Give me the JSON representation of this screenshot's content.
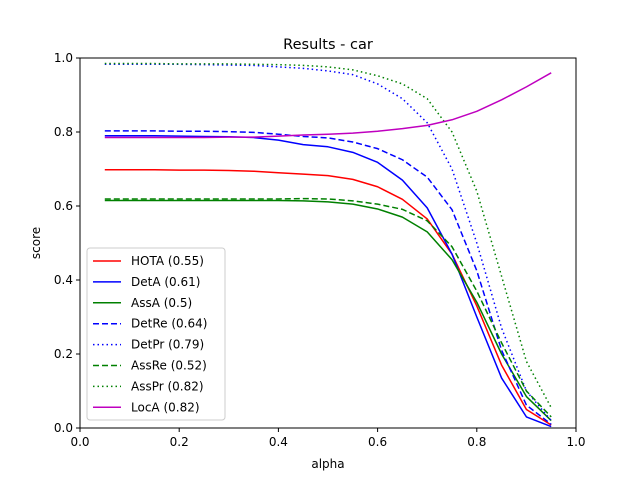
{
  "chart_data": {
    "type": "line",
    "title": "Results - car",
    "xlabel": "alpha",
    "ylabel": "score",
    "xlim": [
      0.0,
      1.0
    ],
    "ylim": [
      0.0,
      1.0
    ],
    "xticks": [
      "0.0",
      "0.2",
      "0.4",
      "0.6",
      "0.8",
      "1.0"
    ],
    "yticks": [
      "0.0",
      "0.2",
      "0.4",
      "0.6",
      "0.8",
      "1.0"
    ],
    "grid": false,
    "legend_position": "lower-left",
    "x": [
      0.05,
      0.1,
      0.15,
      0.2,
      0.25,
      0.3,
      0.35,
      0.4,
      0.45,
      0.5,
      0.55,
      0.6,
      0.65,
      0.7,
      0.75,
      0.8,
      0.85,
      0.9,
      0.95
    ],
    "series": [
      {
        "name": "HOTA (0.55)",
        "color": "#ff0000",
        "dash": "solid",
        "values": [
          0.698,
          0.698,
          0.698,
          0.697,
          0.697,
          0.696,
          0.694,
          0.69,
          0.686,
          0.682,
          0.672,
          0.652,
          0.618,
          0.565,
          0.47,
          0.33,
          0.17,
          0.05,
          0.008
        ]
      },
      {
        "name": "DetA (0.61)",
        "color": "#0000ff",
        "dash": "solid",
        "values": [
          0.79,
          0.79,
          0.79,
          0.789,
          0.788,
          0.787,
          0.785,
          0.778,
          0.766,
          0.76,
          0.745,
          0.718,
          0.67,
          0.595,
          0.47,
          0.3,
          0.135,
          0.03,
          0.004
        ]
      },
      {
        "name": "AssA (0.5)",
        "color": "#008000",
        "dash": "solid",
        "values": [
          0.615,
          0.615,
          0.615,
          0.615,
          0.615,
          0.615,
          0.615,
          0.615,
          0.614,
          0.611,
          0.605,
          0.592,
          0.57,
          0.53,
          0.455,
          0.34,
          0.2,
          0.085,
          0.02
        ]
      },
      {
        "name": "DetRe (0.64)",
        "color": "#0000ff",
        "dash": "dashed",
        "values": [
          0.803,
          0.803,
          0.803,
          0.802,
          0.802,
          0.801,
          0.799,
          0.794,
          0.788,
          0.784,
          0.773,
          0.755,
          0.725,
          0.678,
          0.59,
          0.425,
          0.21,
          0.062,
          0.01
        ]
      },
      {
        "name": "DetPr (0.79)",
        "color": "#0000ff",
        "dash": "dotted",
        "values": [
          0.983,
          0.983,
          0.983,
          0.983,
          0.982,
          0.981,
          0.98,
          0.976,
          0.972,
          0.965,
          0.955,
          0.93,
          0.89,
          0.825,
          0.7,
          0.5,
          0.27,
          0.1,
          0.02
        ]
      },
      {
        "name": "AssRe (0.52)",
        "color": "#008000",
        "dash": "dashed",
        "values": [
          0.619,
          0.619,
          0.619,
          0.619,
          0.619,
          0.619,
          0.619,
          0.619,
          0.62,
          0.619,
          0.614,
          0.605,
          0.591,
          0.56,
          0.49,
          0.37,
          0.23,
          0.1,
          0.03
        ]
      },
      {
        "name": "AssPr (0.82)",
        "color": "#008000",
        "dash": "dotted",
        "values": [
          0.985,
          0.985,
          0.985,
          0.984,
          0.984,
          0.984,
          0.983,
          0.982,
          0.98,
          0.976,
          0.968,
          0.952,
          0.93,
          0.89,
          0.8,
          0.64,
          0.41,
          0.18,
          0.055
        ]
      },
      {
        "name": "LocA (0.82)",
        "color": "#bf00bf",
        "dash": "solid",
        "values": [
          0.785,
          0.785,
          0.785,
          0.785,
          0.785,
          0.786,
          0.786,
          0.789,
          0.792,
          0.794,
          0.797,
          0.802,
          0.809,
          0.818,
          0.833,
          0.856,
          0.887,
          0.922,
          0.96
        ]
      }
    ]
  }
}
